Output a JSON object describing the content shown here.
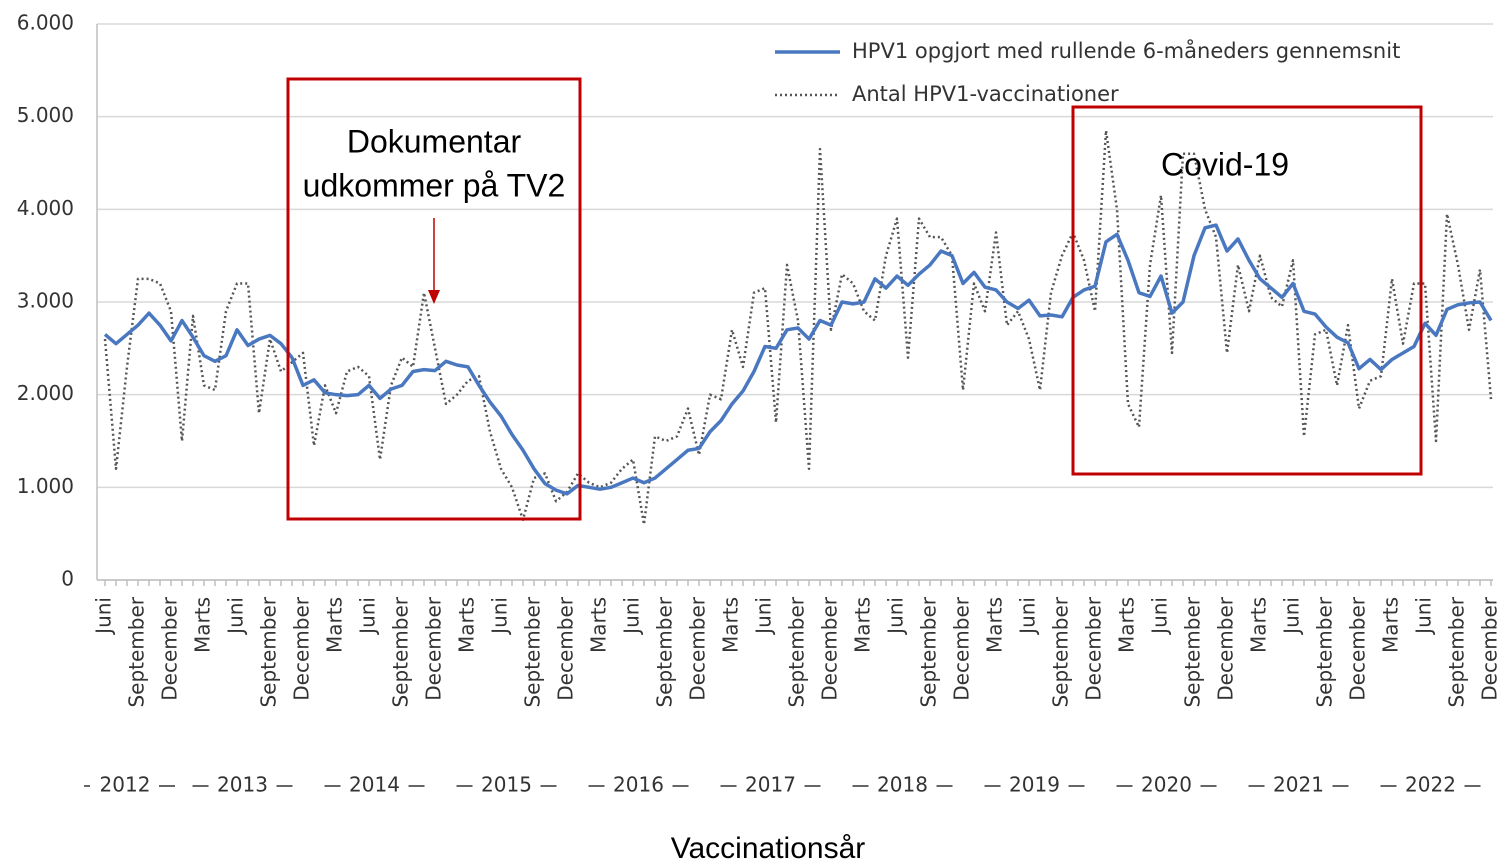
{
  "chart_data": {
    "type": "line",
    "x_label": "Vaccinationsår",
    "categories": [
      "Juni",
      null,
      null,
      "September",
      null,
      null,
      "December",
      null,
      null,
      "Marts",
      null,
      null,
      "Juni",
      null,
      null,
      "September",
      null,
      null,
      "December",
      null,
      null,
      "Marts",
      null,
      null,
      "Juni",
      null,
      null,
      "September",
      null,
      null,
      "December",
      null,
      null,
      "Marts",
      null,
      null,
      "Juni",
      null,
      null,
      "September",
      null,
      null,
      "December",
      null,
      null,
      "Marts",
      null,
      null,
      "Juni",
      null,
      null,
      "September",
      null,
      null,
      "December",
      null,
      null,
      "Marts",
      null,
      null,
      "Juni",
      null,
      null,
      "September",
      null,
      null,
      "December",
      null,
      null,
      "Marts",
      null,
      null,
      "Juni",
      null,
      null,
      "September",
      null,
      null,
      "December",
      null,
      null,
      "Marts",
      null,
      null,
      "Juni",
      null,
      null,
      "September",
      null,
      null,
      "December",
      null,
      null,
      "Marts",
      null,
      null,
      "Juni",
      null,
      null,
      "September",
      null,
      null,
      "December",
      null,
      null,
      "Marts",
      null,
      null,
      "Juni",
      null,
      null,
      "September",
      null,
      null,
      "December",
      null,
      null,
      "Marts",
      null,
      null,
      "Juni",
      null,
      null,
      "September",
      null,
      null,
      "December"
    ],
    "year_labels": [
      "2012",
      "2013",
      "2014",
      "2015",
      "2016",
      "2017",
      "2018",
      "2019",
      "2020",
      "2021",
      "2022"
    ],
    "series": [
      {
        "name": "HPV1 opgjort med rullende 6-måneders gennemsnit",
        "color": "#4a78c0",
        "style": "solid",
        "values": [
          2650,
          2550,
          2650,
          2750,
          2880,
          2750,
          2580,
          2800,
          2620,
          2420,
          2360,
          2420,
          2700,
          2530,
          2600,
          2640,
          2550,
          2400,
          2100,
          2160,
          2020,
          2000,
          1990,
          2000,
          2100,
          1960,
          2060,
          2100,
          2250,
          2270,
          2260,
          2360,
          2320,
          2300,
          2100,
          1920,
          1770,
          1570,
          1400,
          1200,
          1040,
          970,
          930,
          1020,
          1000,
          980,
          1000,
          1050,
          1100,
          1050,
          1100,
          1200,
          1300,
          1400,
          1420,
          1600,
          1720,
          1900,
          2040,
          2250,
          2520,
          2500,
          2700,
          2720,
          2600,
          2800,
          2750,
          3000,
          2980,
          3000,
          3250,
          3150,
          3280,
          3180,
          3300,
          3400,
          3550,
          3500,
          3200,
          3320,
          3160,
          3130,
          3000,
          2930,
          3020,
          2850,
          2860,
          2840,
          3050,
          3130,
          3170,
          3650,
          3730,
          3450,
          3100,
          3060,
          3280,
          2880,
          3000,
          3500,
          3800,
          3830,
          3550,
          3680,
          3450,
          3250,
          3150,
          3050,
          3200,
          2900,
          2870,
          2730,
          2620,
          2560,
          2280,
          2380,
          2270,
          2380,
          2450,
          2520,
          2770,
          2640,
          2920,
          2970,
          2990,
          3000,
          2800
        ]
      },
      {
        "name": "Antal HPV1-vaccinationer",
        "color": "#555555",
        "style": "dotted",
        "values": [
          2600,
          1200,
          2300,
          3250,
          3250,
          3200,
          2900,
          1500,
          2850,
          2100,
          2050,
          2900,
          3200,
          3200,
          1800,
          2600,
          2250,
          2350,
          2450,
          1450,
          2100,
          1800,
          2250,
          2300,
          2200,
          1300,
          2100,
          2400,
          2300,
          3100,
          2500,
          1900,
          2000,
          2150,
          2200,
          1600,
          1200,
          1000,
          650,
          1100,
          1150,
          850,
          950,
          1150,
          1050,
          1000,
          1050,
          1200,
          1300,
          600,
          1550,
          1500,
          1550,
          1850,
          1350,
          2000,
          1950,
          2700,
          2300,
          3100,
          3150,
          1700,
          3400,
          2800,
          1200,
          4650,
          2700,
          3300,
          3200,
          2900,
          2800,
          3500,
          3900,
          2400,
          3900,
          3700,
          3700,
          3500,
          2050,
          3200,
          2900,
          3750,
          2750,
          2900,
          2600,
          2050,
          3100,
          3500,
          3750,
          3450,
          2900,
          4850,
          4000,
          1900,
          1650,
          3400,
          4150,
          2450,
          4600,
          4600,
          4000,
          3700,
          2450,
          3400,
          2900,
          3500,
          3050,
          2950,
          3450,
          1550,
          2650,
          2700,
          2100,
          2750,
          1850,
          2150,
          2200,
          3250,
          2550,
          3200,
          3200,
          1500,
          3950,
          3400,
          2700,
          3350,
          1950
        ]
      }
    ],
    "ylim": [
      0,
      6000
    ],
    "yticks": [
      0,
      {
        "value": 1000,
        "label": "1.000"
      },
      {
        "value": 2000,
        "label": "2.000"
      },
      {
        "value": 3000,
        "label": "3.000"
      },
      {
        "value": 4000,
        "label": "4.000"
      },
      {
        "value": 5000,
        "label": "5.000"
      },
      {
        "value": 6000,
        "label": "6.000"
      }
    ],
    "grid": true,
    "legend": "upper right",
    "annotations": [
      {
        "lines": [
          "Dokumentar",
          "udkommer på TV2"
        ],
        "color": "#c00000"
      },
      {
        "lines": [
          "Covid-19"
        ],
        "color": "#c00000"
      }
    ]
  }
}
